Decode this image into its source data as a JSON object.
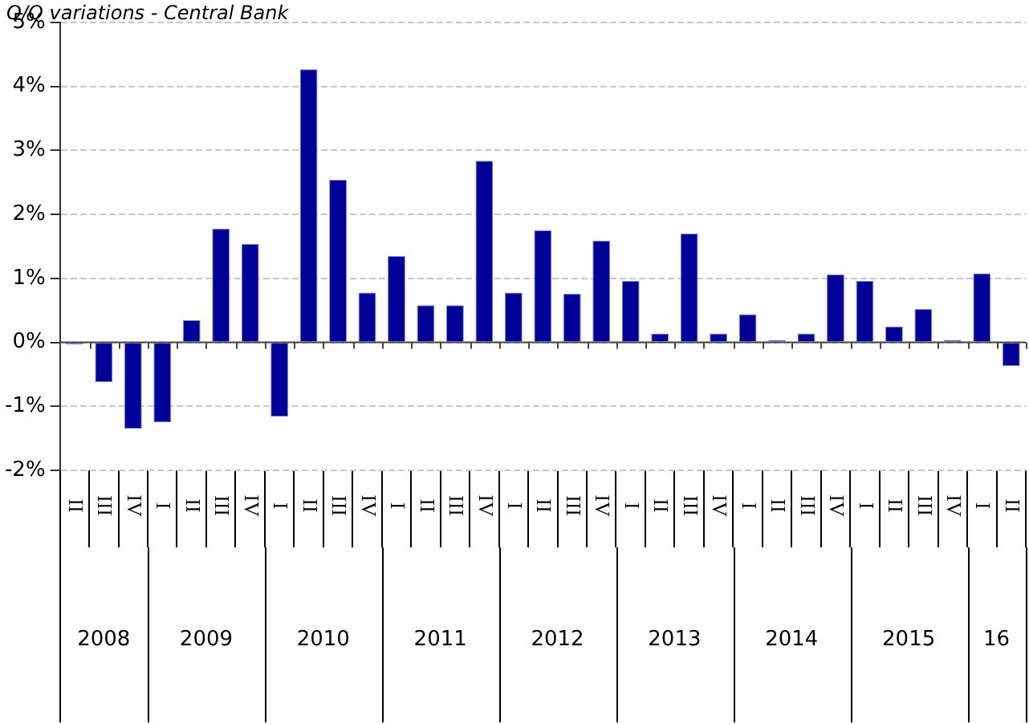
{
  "chart_data": {
    "type": "bar",
    "title": "Q/Q variations - Central Bank",
    "categories": [
      "II",
      "III",
      "IV",
      "I",
      "II",
      "III",
      "IV",
      "I",
      "II",
      "III",
      "IV",
      "I",
      "II",
      "III",
      "IV",
      "I",
      "II",
      "III",
      "IV",
      "I",
      "II",
      "III",
      "IV",
      "I",
      "II",
      "III",
      "IV",
      "I",
      "II",
      "III",
      "IV",
      "I",
      "II"
    ],
    "values": [
      -0.03,
      -0.62,
      -1.35,
      -1.25,
      0.35,
      1.78,
      1.54,
      -1.16,
      4.27,
      2.54,
      0.78,
      1.35,
      0.58,
      0.58,
      2.84,
      0.78,
      1.75,
      0.76,
      1.59,
      0.96,
      0.14,
      1.7,
      0.14,
      0.44,
      0.04,
      0.14,
      1.06,
      0.96,
      0.25,
      0.52,
      0.04,
      1.08,
      -0.37
    ],
    "color": "#000099",
    "ylim": [
      -2,
      5
    ],
    "yticks": [
      {
        "value": -2,
        "label": "-2%"
      },
      {
        "value": -1,
        "label": "-1%"
      },
      {
        "value": 0,
        "label": "0%"
      },
      {
        "value": 1,
        "label": "1%"
      },
      {
        "value": 2,
        "label": "2%"
      },
      {
        "value": 3,
        "label": "3%"
      },
      {
        "value": 4,
        "label": "4%"
      },
      {
        "value": 5,
        "label": "5%"
      }
    ],
    "grid": "y",
    "legend": false,
    "annotations": [
      "2008",
      "2009",
      "2010",
      "2011",
      "2012",
      "2013",
      "2014",
      "2015",
      "16"
    ]
  }
}
